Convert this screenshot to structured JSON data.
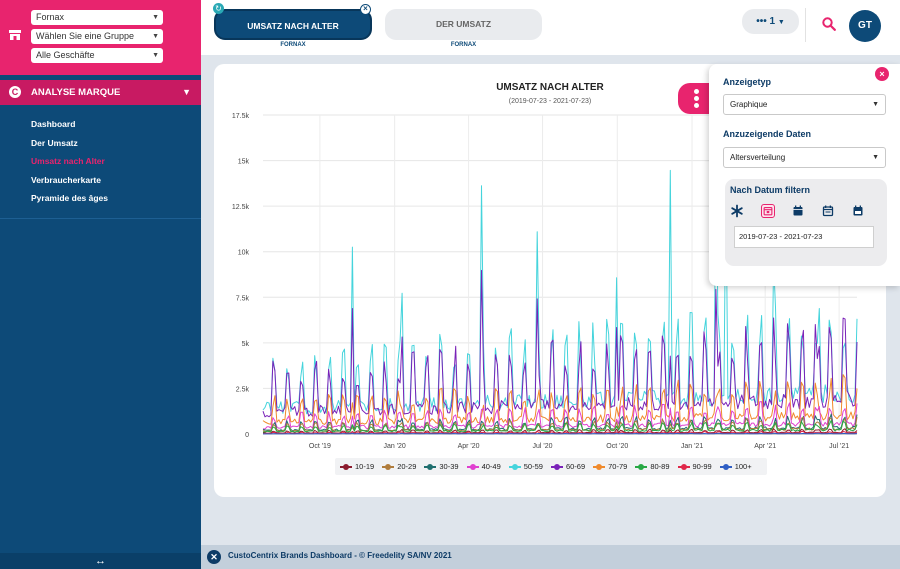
{
  "sidebar": {
    "selects": [
      {
        "value": "Fornax"
      },
      {
        "value": "Wählen Sie eine Gruppe"
      },
      {
        "value": "Alle Geschäfte"
      }
    ],
    "section_label": "ANALYSE MARQUE",
    "items": [
      {
        "label": "Dashboard"
      },
      {
        "label": "Der Umsatz"
      },
      {
        "label": "Umsatz nach Alter"
      },
      {
        "label": "Verbraucherkarte"
      },
      {
        "label": "Pyramide des âges"
      }
    ],
    "active_index": 2,
    "resize_glyph": "↔"
  },
  "tabs": [
    {
      "label": "UMSATZ NACH ALTER",
      "sublabel": "FORNAX"
    },
    {
      "label": "DER UMSATZ",
      "sublabel": "FORNAX"
    }
  ],
  "topbar": {
    "pager_label": "••• 1",
    "avatar_initials": "GT"
  },
  "panel": {
    "display_type_label": "Anzeigetyp",
    "display_type_value": "Graphique",
    "data_label": "Anzuzeigende Daten",
    "data_value": "Altersverteilung",
    "filter_label": "Nach Datum filtern",
    "date_range": "2019-07-23 - 2021-07-23"
  },
  "footer": {
    "text": "CustoCentrix Brands Dashboard - © Freedelity SA/NV 2021"
  },
  "colors": {
    "brand_pink": "#e8246e",
    "brand_navy": "#0d4a78"
  },
  "chart_data": {
    "type": "line",
    "title": "UMSATZ NACH ALTER",
    "subtitle": "(2019-07-23 - 2021-07-23)",
    "y_ticks": [
      "0",
      "2.5k",
      "5k",
      "7.5k",
      "10k",
      "12.5k",
      "15k",
      "17.5k"
    ],
    "ylim": [
      0,
      17500
    ],
    "x_ticks": [
      "Oct '19",
      "Jan '20",
      "Apr '20",
      "Jul '20",
      "Oct '20",
      "Jan '21",
      "Apr '21",
      "Jul '21"
    ],
    "x_range": [
      "2019-07-23",
      "2021-07-23"
    ],
    "grid": true,
    "legend_position": "bottom",
    "series": [
      {
        "name": "10-19",
        "color": "#8b1b2e",
        "level": 80,
        "peak": 300
      },
      {
        "name": "20-29",
        "color": "#b07c3c",
        "level": 250,
        "peak": 700
      },
      {
        "name": "30-39",
        "color": "#1f6f6f",
        "level": 300,
        "peak": 900
      },
      {
        "name": "40-49",
        "color": "#e040d0",
        "level": 500,
        "peak": 1600
      },
      {
        "name": "50-59",
        "color": "#45d4dc",
        "level": 2000,
        "peak": 15300
      },
      {
        "name": "60-69",
        "color": "#7a22b8",
        "level": 1700,
        "peak": 9500
      },
      {
        "name": "70-79",
        "color": "#f08a2c",
        "level": 900,
        "peak": 2200
      },
      {
        "name": "80-89",
        "color": "#27a844",
        "level": 200,
        "peak": 600
      },
      {
        "name": "90-99",
        "color": "#e0284a",
        "level": 40,
        "peak": 150
      },
      {
        "name": "100+",
        "color": "#2f5ec4",
        "level": 10,
        "peak": 50
      }
    ]
  }
}
